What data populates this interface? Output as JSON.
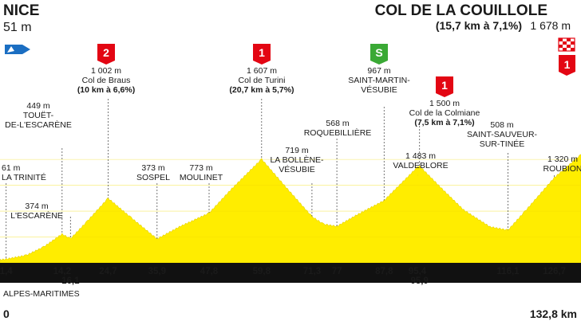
{
  "start": {
    "name": "NICE",
    "altitude": "51 m",
    "km": "0"
  },
  "finish": {
    "name": "COL DE LA COUILLOLE",
    "detail": "(15,7 km à 7,1%)",
    "altitude": "1 678 m",
    "km": "132,8 km"
  },
  "region": "ALPES-MARITIMES",
  "colors": {
    "profile": "#ffed00",
    "baseline": "#111111",
    "climb_badge": "#e30613",
    "sprint_badge": "#3aa935",
    "start_flag": "#1b6ec2"
  },
  "chart_data": {
    "type": "area",
    "title": "",
    "xlabel": "",
    "ylabel": "",
    "xlim": [
      0,
      132.8
    ],
    "ylim": [
      0,
      1700
    ],
    "profile": [
      {
        "x": 0,
        "y": 51
      },
      {
        "x": 1.4,
        "y": 61
      },
      {
        "x": 6,
        "y": 120
      },
      {
        "x": 10,
        "y": 250
      },
      {
        "x": 14.2,
        "y": 449
      },
      {
        "x": 16.1,
        "y": 374
      },
      {
        "x": 20,
        "y": 650
      },
      {
        "x": 24.7,
        "y": 1002
      },
      {
        "x": 30,
        "y": 700
      },
      {
        "x": 35.9,
        "y": 373
      },
      {
        "x": 41,
        "y": 560
      },
      {
        "x": 47.8,
        "y": 773
      },
      {
        "x": 53,
        "y": 1150
      },
      {
        "x": 59.8,
        "y": 1607
      },
      {
        "x": 65,
        "y": 1200
      },
      {
        "x": 71.3,
        "y": 719
      },
      {
        "x": 74,
        "y": 600
      },
      {
        "x": 77,
        "y": 568
      },
      {
        "x": 82,
        "y": 760
      },
      {
        "x": 87.8,
        "y": 967
      },
      {
        "x": 95.4,
        "y": 1483
      },
      {
        "x": 95.9,
        "y": 1500
      },
      {
        "x": 101,
        "y": 1150
      },
      {
        "x": 106,
        "y": 820
      },
      {
        "x": 112,
        "y": 560
      },
      {
        "x": 116.1,
        "y": 508
      },
      {
        "x": 120,
        "y": 800
      },
      {
        "x": 126.7,
        "y": 1320
      },
      {
        "x": 132.8,
        "y": 1678
      }
    ],
    "km_marks": [
      {
        "x": 1.4,
        "label": "1,4"
      },
      {
        "x": 14.2,
        "label": "14,2"
      },
      {
        "x": 16.1,
        "label": "16,1"
      },
      {
        "x": 24.7,
        "label": "24,7"
      },
      {
        "x": 35.9,
        "label": "35,9"
      },
      {
        "x": 47.8,
        "label": "47,8"
      },
      {
        "x": 59.8,
        "label": "59,8"
      },
      {
        "x": 71.3,
        "label": "71,3"
      },
      {
        "x": 77,
        "label": "77"
      },
      {
        "x": 87.8,
        "label": "87,8"
      },
      {
        "x": 95.4,
        "label": "95,4"
      },
      {
        "x": 95.9,
        "label": "95,9"
      },
      {
        "x": 116.1,
        "label": "116,1"
      },
      {
        "x": 126.7,
        "label": "126,7"
      }
    ],
    "places": [
      {
        "km": 1.4,
        "alt": "61 m",
        "name": "LA TRINITÉ"
      },
      {
        "km": 14.2,
        "alt": "449 m",
        "name": "TOUËT-\nDE-L'ESCARÈNE"
      },
      {
        "km": 16.1,
        "alt": "374 m",
        "name": "L'ESCARÈNE"
      },
      {
        "km": 24.7,
        "alt": "1 002 m",
        "name": "Col de Braus",
        "detail": "(10 km à 6,6%)",
        "badge": "2",
        "badge_type": "climb"
      },
      {
        "km": 35.9,
        "alt": "373 m",
        "name": "SOSPEL"
      },
      {
        "km": 47.8,
        "alt": "773 m",
        "name": "MOULINET"
      },
      {
        "km": 59.8,
        "alt": "1 607 m",
        "name": "Col de Turini",
        "detail": "(20,7 km à 5,7%)",
        "badge": "1",
        "badge_type": "climb"
      },
      {
        "km": 71.3,
        "alt": "719 m",
        "name": "LA BOLLÈNE-\nVÉSUBIE"
      },
      {
        "km": 77,
        "alt": "568 m",
        "name": "ROQUEBILLIÈRE"
      },
      {
        "km": 87.8,
        "alt": "967 m",
        "name": "SAINT-MARTIN-\nVÉSUBIE",
        "badge": "S",
        "badge_type": "sprint"
      },
      {
        "km": 95.4,
        "alt": "1 483 m",
        "name": "VALDEBLORE"
      },
      {
        "km": 95.9,
        "alt": "1 500 m",
        "name": "Col de la Colmiane",
        "detail": "(7,5 km à 7,1%)",
        "badge": "1",
        "badge_type": "climb"
      },
      {
        "km": 116.1,
        "alt": "508 m",
        "name": "SAINT-SAUVEUR-\nSUR-TINÉE"
      },
      {
        "km": 126.7,
        "alt": "1 320 m",
        "name": "ROUBION"
      }
    ],
    "finish_badge": "1"
  }
}
